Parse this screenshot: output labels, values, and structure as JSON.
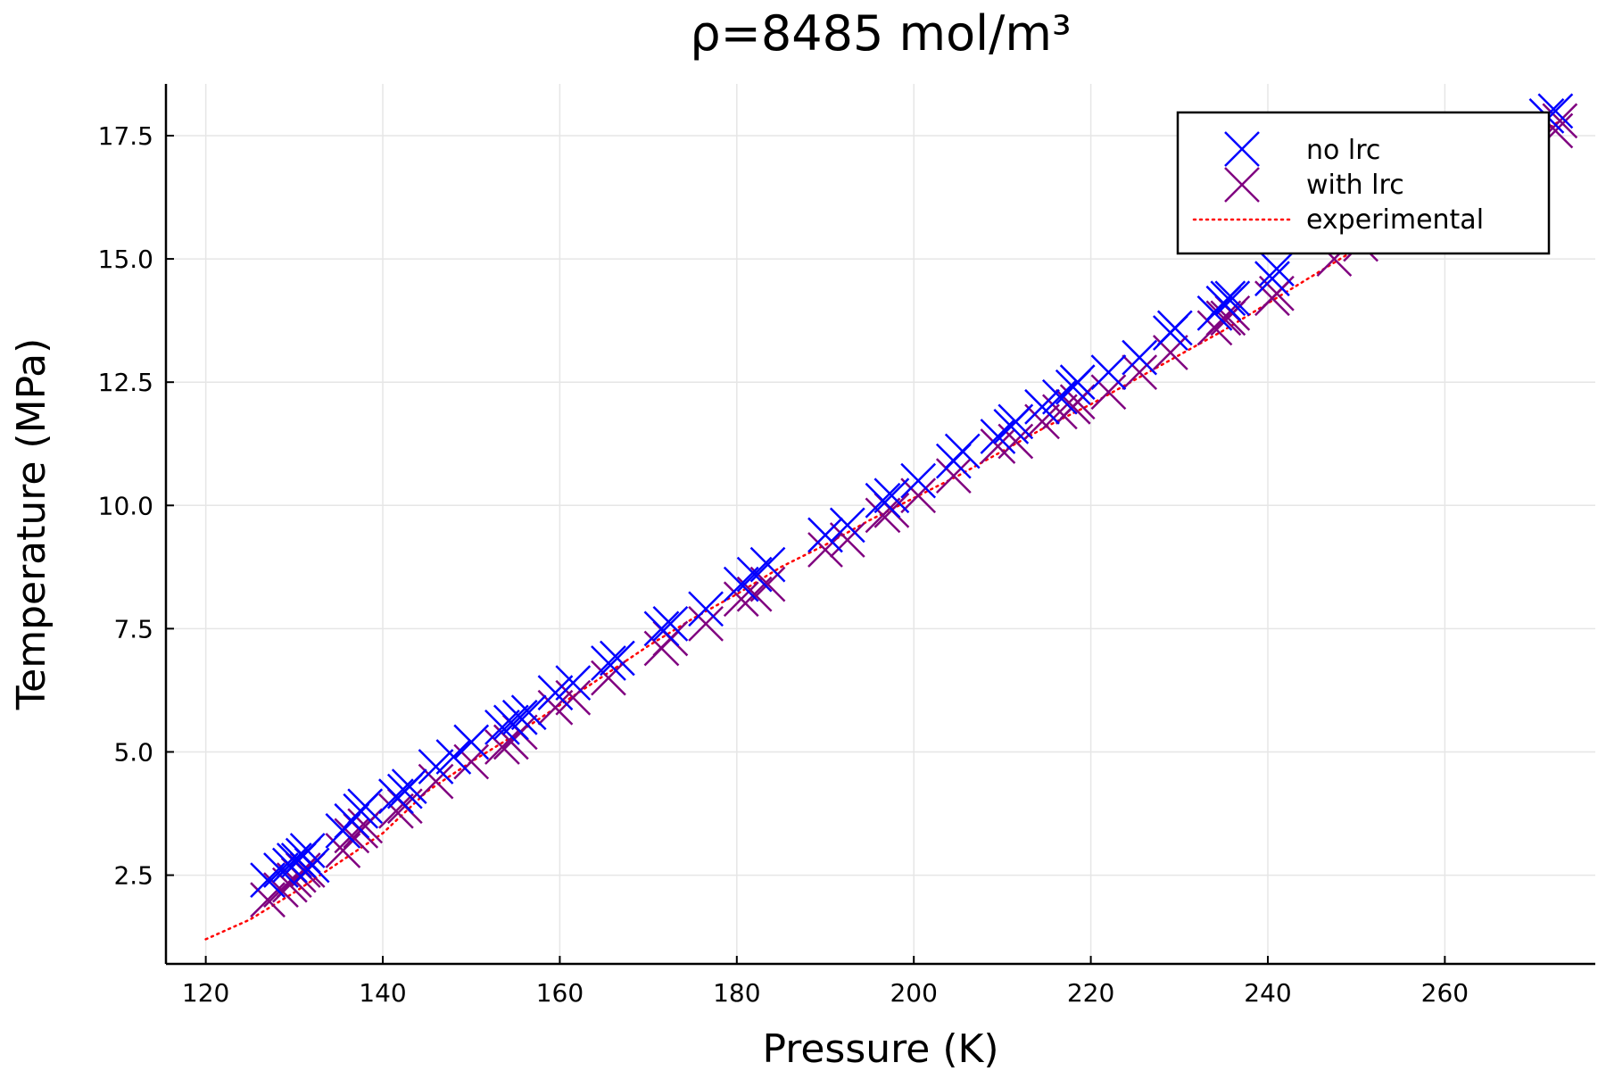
{
  "chart_data": {
    "type": "scatter",
    "title": "ρ=8485 mol/m³",
    "xlabel": "Pressure (K)",
    "ylabel": "Temperature (MPa)",
    "xlim": [
      115.5,
      277
    ],
    "ylim": [
      0.7,
      18.55
    ],
    "xticks": [
      120,
      140,
      160,
      180,
      200,
      220,
      240,
      260
    ],
    "yticks": [
      2.5,
      5.0,
      7.5,
      10.0,
      12.5,
      15.0,
      17.5
    ],
    "xtick_labels": [
      "120",
      "140",
      "160",
      "180",
      "200",
      "220",
      "240",
      "260"
    ],
    "ytick_labels": [
      "2.5",
      "5.0",
      "7.5",
      "10.0",
      "12.5",
      "15.0",
      "17.5"
    ],
    "grid": true,
    "legend_position": "top-right",
    "series": [
      {
        "name": "no lrc",
        "marker": "x",
        "color": "#0000ff",
        "x": [
          127,
          128.5,
          129.5,
          130,
          130.5,
          131,
          131.5,
          132,
          135.5,
          136.5,
          137.5,
          138,
          141.5,
          142.5,
          143,
          146,
          148,
          150,
          153.5,
          154.5,
          155.5,
          156.5,
          159.5,
          161.5,
          165.5,
          166.5,
          171.5,
          172.5,
          176.5,
          180.5,
          182,
          183.5,
          190,
          192.5,
          196.5,
          197.5,
          200.5,
          204.5,
          205.5,
          209.5,
          211,
          211.5,
          214.5,
          216.5,
          218,
          218.5,
          222,
          225.5,
          229,
          229.5,
          234,
          235,
          235.5,
          236,
          240.5,
          241,
          271.5,
          272.5
        ],
        "y": [
          2.4,
          2.6,
          2.7,
          2.8,
          2.8,
          2.9,
          3.0,
          2.7,
          3.4,
          3.6,
          3.8,
          3.9,
          4.1,
          4.2,
          4.3,
          4.7,
          4.9,
          5.2,
          5.5,
          5.6,
          5.7,
          5.8,
          6.2,
          6.4,
          6.8,
          6.9,
          7.5,
          7.6,
          7.9,
          8.4,
          8.6,
          8.8,
          9.4,
          9.6,
          10.1,
          10.2,
          10.5,
          10.9,
          11.1,
          11.4,
          11.6,
          11.7,
          12.0,
          12.2,
          12.4,
          12.5,
          12.7,
          13.0,
          13.5,
          13.6,
          13.9,
          14.1,
          14.2,
          14.2,
          14.6,
          14.8,
          17.9,
          18.0
        ]
      },
      {
        "name": "with lrc",
        "marker": "x",
        "color": "#800080",
        "x": [
          127,
          128.5,
          129.5,
          130,
          130.5,
          131,
          131.5,
          135.5,
          136.5,
          137.5,
          138,
          141.5,
          142.5,
          146,
          150,
          153.5,
          154.5,
          155.5,
          159.5,
          161.5,
          165.5,
          171.5,
          172.5,
          176.5,
          180.5,
          182,
          183.5,
          190,
          192.5,
          196.5,
          197.5,
          200.5,
          204.5,
          209.5,
          211.5,
          214.5,
          216.5,
          218,
          218.5,
          222,
          225.5,
          229,
          234,
          235,
          235.5,
          236,
          240.5,
          241,
          247.5,
          250.5,
          272.5,
          273
        ],
        "y": [
          2.0,
          2.2,
          2.3,
          2.4,
          2.5,
          2.6,
          2.6,
          3.0,
          3.3,
          3.4,
          3.5,
          3.8,
          3.9,
          4.4,
          4.8,
          5.1,
          5.2,
          5.4,
          5.9,
          6.1,
          6.5,
          7.1,
          7.3,
          7.6,
          8.1,
          8.2,
          8.4,
          9.1,
          9.3,
          9.8,
          9.9,
          10.2,
          10.6,
          11.2,
          11.3,
          11.7,
          11.9,
          12.0,
          12.1,
          12.3,
          12.7,
          13.1,
          13.6,
          13.8,
          13.8,
          13.9,
          14.2,
          14.3,
          15.0,
          15.3,
          17.6,
          17.8
        ]
      },
      {
        "name": "experimental",
        "line_style": "dotted",
        "color": "#ff0000",
        "x": [
          120,
          125,
          130,
          135,
          140,
          145,
          150,
          155,
          160,
          165,
          170,
          175,
          180,
          185,
          190,
          195,
          200,
          205,
          210,
          215,
          220,
          225,
          230,
          235,
          240,
          245,
          250,
          255,
          260,
          265,
          270,
          273
        ],
        "y": [
          1.2,
          1.6,
          2.15,
          2.75,
          3.35,
          4.2,
          4.8,
          5.35,
          5.95,
          6.55,
          7.15,
          7.7,
          8.2,
          8.75,
          9.2,
          9.7,
          10.15,
          10.6,
          11.1,
          11.6,
          12.05,
          12.55,
          13.05,
          13.55,
          14.1,
          14.65,
          15.2,
          15.75,
          16.3,
          16.9,
          17.45,
          17.8
        ]
      }
    ]
  }
}
